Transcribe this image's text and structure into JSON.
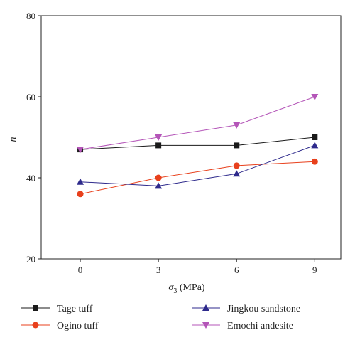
{
  "chart_data": {
    "type": "line",
    "title": "",
    "xlabel": {
      "symbol": "σ",
      "subscript": "3",
      "unit": " (MPa)"
    },
    "ylabel": "n",
    "x": [
      0,
      3,
      6,
      9
    ],
    "xlim": [
      -1.5,
      10
    ],
    "ylim": [
      20,
      80
    ],
    "xticks": [
      "0",
      "3",
      "6",
      "9"
    ],
    "yticks": [
      "20",
      "40",
      "60",
      "80"
    ],
    "grid": false,
    "legend_position": "bottom",
    "series": [
      {
        "name": "Tage tuff",
        "values": [
          47,
          48,
          48,
          50
        ],
        "color": "#1a1a1a",
        "marker": "square"
      },
      {
        "name": "Ogino tuff",
        "values": [
          36,
          40,
          43,
          44
        ],
        "color": "#e8401c",
        "marker": "circle"
      },
      {
        "name": "Jingkou sandstone",
        "values": [
          39,
          38,
          41,
          48
        ],
        "color": "#2e2a8c",
        "marker": "triangle-up"
      },
      {
        "name": "Emochi andesite",
        "values": [
          47,
          50,
          53,
          60
        ],
        "color": "#b455b8",
        "marker": "triangle-down"
      }
    ]
  }
}
